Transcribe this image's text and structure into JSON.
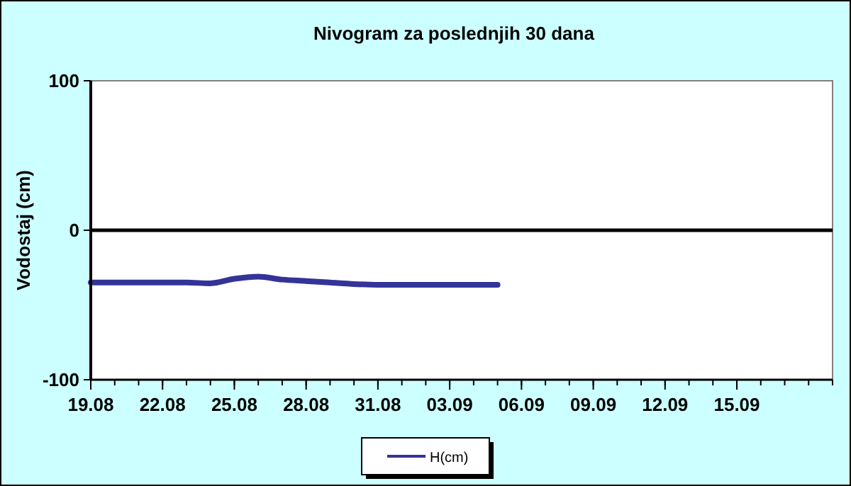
{
  "chart_data": {
    "type": "line",
    "title": "Nivogram za poslednjih 30 dana",
    "ylabel": "Vodostaj (cm)",
    "x": [
      "--08-19",
      "--08-20",
      "--08-21",
      "--08-22",
      "--08-23",
      "--08-24",
      "--08-25",
      "--08-26",
      "--08-27",
      "--08-28",
      "--08-29",
      "--08-30",
      "--08-31",
      "--09-01",
      "--09-02",
      "--09-03",
      "--09-04",
      "--09-05"
    ],
    "series": [
      {
        "name": "H(cm)",
        "color": "#333399",
        "values": [
          -35,
          -35,
          -35,
          -35,
          -35,
          -35.5,
          -32.5,
          -31,
          -33,
          -34,
          -35,
          -36,
          -36.5,
          -36.5,
          -36.5,
          -36.5,
          -36.5,
          -36.5
        ]
      }
    ],
    "xlim": [
      "--08-19",
      "--09-19"
    ],
    "xticks": [
      {
        "value": "--08-19",
        "label": "19.08"
      },
      {
        "value": "--08-22",
        "label": "22.08"
      },
      {
        "value": "--08-25",
        "label": "25.08"
      },
      {
        "value": "--08-28",
        "label": "28.08"
      },
      {
        "value": "--08-31",
        "label": "31.08"
      },
      {
        "value": "--09-03",
        "label": "03.09"
      },
      {
        "value": "--09-06",
        "label": "06.09"
      },
      {
        "value": "--09-09",
        "label": "09.09"
      },
      {
        "value": "--09-12",
        "label": "12.09"
      },
      {
        "value": "--09-15",
        "label": "15.09"
      }
    ],
    "ylim": [
      -100,
      100
    ],
    "yticks": [
      -100,
      0,
      100
    ],
    "ref_lines": [
      {
        "axis": "y",
        "value": 0,
        "color": "#000000"
      }
    ],
    "grid": false,
    "legend": "bottom",
    "marker": "none",
    "line_style": "solid"
  }
}
